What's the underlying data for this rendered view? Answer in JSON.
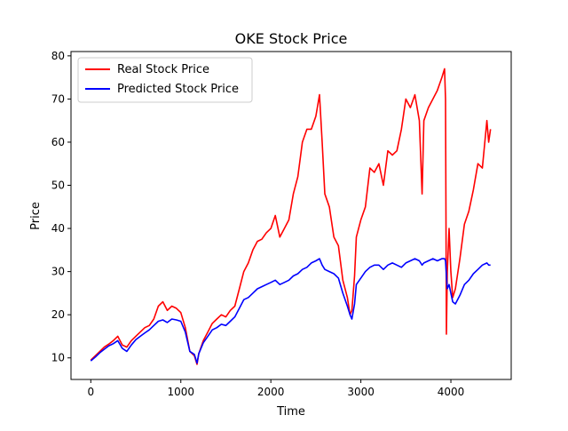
{
  "chart_data": {
    "type": "line",
    "title": "OKE Stock Price",
    "xlabel": "Time",
    "ylabel": "Price",
    "xlim": [
      -220,
      4670
    ],
    "ylim": [
      5,
      81
    ],
    "xticks": [
      0,
      1000,
      2000,
      3000,
      4000
    ],
    "yticks": [
      10,
      20,
      30,
      40,
      50,
      60,
      70,
      80
    ],
    "grid": false,
    "legend_position": "upper left",
    "series": [
      {
        "name": "Real Stock Price",
        "color": "#ff0000",
        "x": [
          0,
          50,
          100,
          150,
          200,
          250,
          300,
          350,
          400,
          450,
          500,
          550,
          600,
          650,
          700,
          750,
          800,
          850,
          900,
          950,
          1000,
          1050,
          1100,
          1150,
          1180,
          1200,
          1250,
          1300,
          1350,
          1400,
          1450,
          1500,
          1550,
          1600,
          1650,
          1700,
          1750,
          1800,
          1850,
          1900,
          1950,
          2000,
          2050,
          2100,
          2150,
          2200,
          2250,
          2300,
          2350,
          2400,
          2450,
          2500,
          2540,
          2570,
          2600,
          2650,
          2700,
          2750,
          2800,
          2850,
          2880,
          2900,
          2930,
          2950,
          3000,
          3050,
          3100,
          3150,
          3200,
          3250,
          3300,
          3350,
          3400,
          3450,
          3500,
          3550,
          3600,
          3650,
          3680,
          3700,
          3750,
          3800,
          3850,
          3900,
          3930,
          3940,
          3950,
          3960,
          3980,
          4000,
          4020,
          4050,
          4100,
          4150,
          4200,
          4250,
          4300,
          4350,
          4400,
          4420,
          4440
        ],
        "y": [
          9.5,
          10.5,
          11.5,
          12.5,
          13.2,
          14.0,
          15.0,
          13.0,
          12.5,
          14.0,
          15.0,
          16.0,
          17.0,
          17.5,
          19.0,
          22.0,
          23.0,
          21.0,
          22.0,
          21.5,
          20.5,
          17.0,
          11.5,
          10.5,
          8.5,
          11.0,
          14.0,
          16.0,
          18.0,
          19.0,
          20.0,
          19.5,
          21.0,
          22.0,
          26.0,
          30.0,
          32.0,
          35.0,
          37.0,
          37.5,
          39.0,
          40.0,
          43.0,
          38.0,
          40.0,
          42.0,
          48.0,
          52.0,
          60.0,
          63.0,
          63.0,
          66.0,
          71.0,
          60.0,
          48.0,
          45.0,
          38.0,
          36.0,
          28.0,
          24.0,
          20.0,
          21.0,
          29.0,
          38.0,
          42.0,
          45.0,
          54.0,
          53.0,
          55.0,
          50.0,
          58.0,
          57.0,
          58.0,
          63.0,
          70.0,
          68.0,
          71.0,
          65.0,
          48.0,
          65.0,
          68.0,
          70.0,
          72.0,
          75.0,
          77.0,
          70.0,
          15.5,
          30.0,
          40.0,
          30.0,
          24.0,
          26.0,
          33.0,
          41.0,
          44.0,
          49.0,
          55.0,
          54.0,
          65.0,
          60.0,
          63.0
        ]
      },
      {
        "name": "Predicted Stock Price",
        "color": "#0000ff",
        "x": [
          0,
          50,
          100,
          150,
          200,
          250,
          300,
          350,
          400,
          450,
          500,
          550,
          600,
          650,
          700,
          750,
          800,
          850,
          900,
          950,
          1000,
          1050,
          1100,
          1150,
          1180,
          1200,
          1250,
          1300,
          1350,
          1400,
          1450,
          1500,
          1550,
          1600,
          1650,
          1700,
          1750,
          1800,
          1850,
          1900,
          1950,
          2000,
          2050,
          2100,
          2150,
          2200,
          2250,
          2300,
          2350,
          2400,
          2450,
          2500,
          2540,
          2570,
          2600,
          2650,
          2700,
          2750,
          2800,
          2850,
          2880,
          2900,
          2930,
          2950,
          3000,
          3050,
          3100,
          3150,
          3200,
          3250,
          3300,
          3350,
          3400,
          3450,
          3500,
          3550,
          3600,
          3650,
          3680,
          3700,
          3750,
          3800,
          3850,
          3900,
          3930,
          3940,
          3950,
          3960,
          3980,
          4000,
          4020,
          4050,
          4100,
          4150,
          4200,
          4250,
          4300,
          4350,
          4400,
          4420,
          4440
        ],
        "y": [
          9.3,
          10.2,
          11.2,
          12.0,
          12.8,
          13.3,
          14.0,
          12.2,
          11.5,
          13.0,
          14.2,
          15.0,
          15.8,
          16.5,
          17.5,
          18.5,
          18.8,
          18.2,
          19.0,
          18.8,
          18.5,
          16.0,
          11.5,
          10.8,
          8.8,
          11.0,
          13.5,
          15.0,
          16.5,
          17.0,
          17.8,
          17.5,
          18.5,
          19.5,
          21.5,
          23.5,
          24.0,
          25.0,
          26.0,
          26.5,
          27.0,
          27.5,
          28.0,
          27.0,
          27.5,
          28.0,
          29.0,
          29.5,
          30.5,
          31.0,
          32.0,
          32.5,
          33.0,
          31.5,
          30.5,
          30.0,
          29.5,
          28.5,
          25.0,
          22.0,
          20.0,
          19.0,
          22.5,
          27.0,
          28.5,
          30.0,
          31.0,
          31.5,
          31.5,
          30.5,
          31.5,
          32.0,
          31.5,
          31.0,
          32.0,
          32.5,
          33.0,
          32.5,
          31.5,
          32.0,
          32.5,
          33.0,
          32.5,
          33.0,
          33.0,
          32.5,
          29.0,
          26.0,
          27.0,
          25.0,
          23.0,
          22.5,
          24.5,
          27.0,
          28.0,
          29.5,
          30.5,
          31.5,
          32.0,
          31.5,
          31.5
        ]
      }
    ]
  }
}
